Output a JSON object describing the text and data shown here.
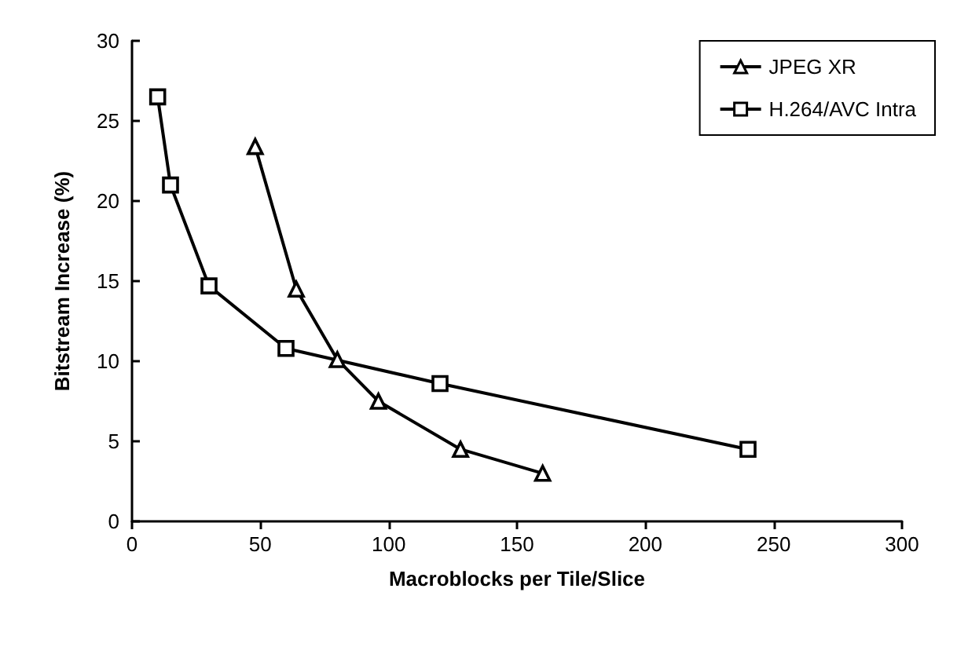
{
  "chart_data": {
    "type": "line",
    "xlabel": "Macroblocks per Tile/Slice",
    "ylabel": "Bitstream Increase (%)",
    "xlim": [
      0,
      300
    ],
    "xticks": [
      0,
      50,
      100,
      150,
      200,
      250,
      300
    ],
    "ylim": [
      0,
      30
    ],
    "yticks": [
      0,
      5,
      10,
      15,
      20,
      25,
      30
    ],
    "grid": false,
    "legend": "top right",
    "line_style": "solid",
    "series": [
      {
        "name": "JPEG XR",
        "color": "#000000",
        "marker": "triangle",
        "x": [
          48,
          64,
          80,
          96,
          128,
          160
        ],
        "values": [
          23.4,
          14.5,
          10.1,
          7.5,
          4.5,
          3.0
        ]
      },
      {
        "name": "H.264/AVC Intra",
        "color": "#000000",
        "marker": "square",
        "x": [
          10,
          15,
          30,
          60,
          120,
          240
        ],
        "values": [
          26.5,
          21.0,
          14.7,
          10.8,
          8.6,
          4.5
        ]
      }
    ]
  }
}
